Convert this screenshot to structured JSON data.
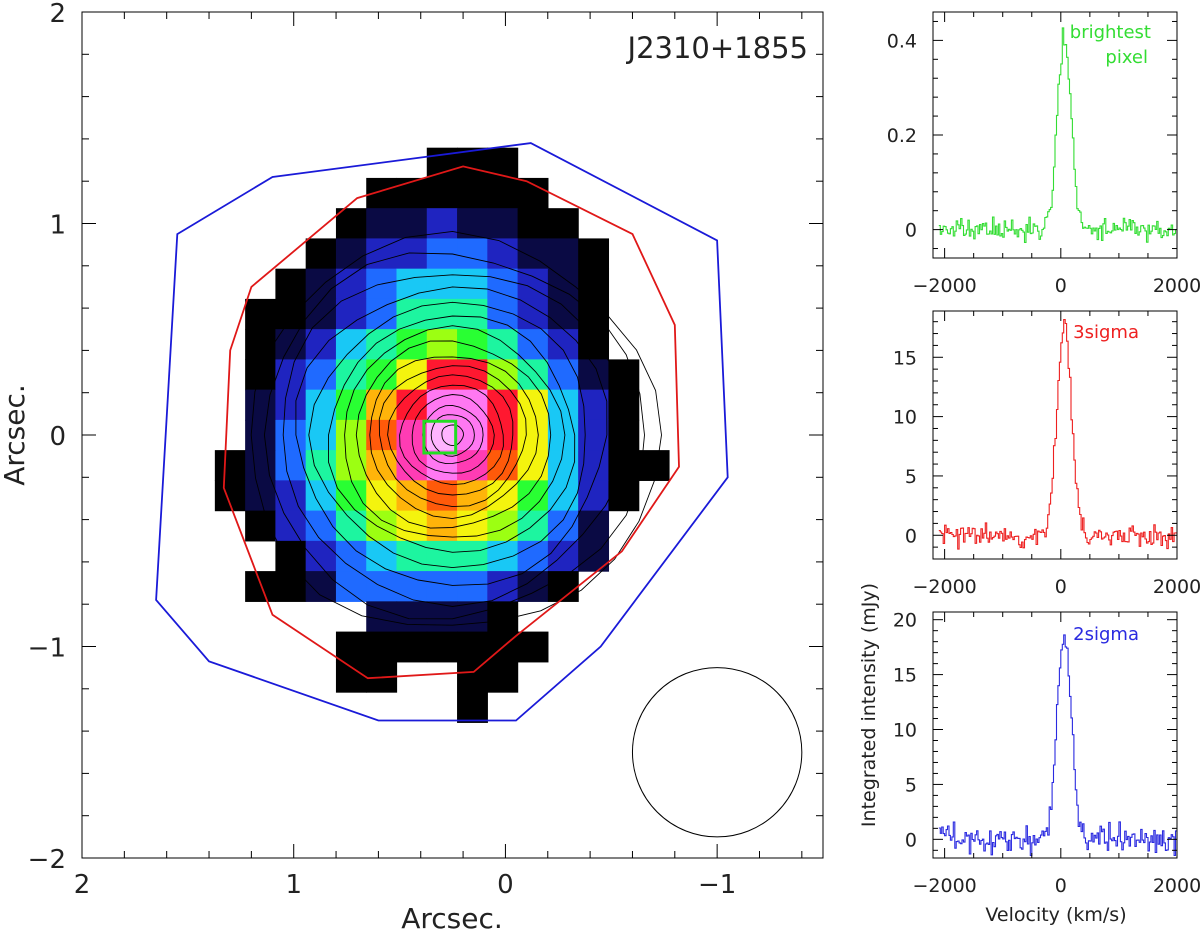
{
  "chart_data": [
    {
      "type": "heatmap",
      "name": "integrated-intensity-map",
      "title": "J2310+1855",
      "xlabel": "Arcsec.",
      "ylabel": "Arcsec.",
      "xlim": [
        2,
        -1.5
      ],
      "ylim": [
        -2,
        2
      ],
      "xticks": [
        2,
        1,
        0,
        -1
      ],
      "xtick_labels": [
        "2",
        "1",
        "0",
        "−1"
      ],
      "yticks": [
        -2,
        -1,
        0,
        1,
        2
      ],
      "ytick_labels": [
        "−2",
        "−1",
        "0",
        "1",
        "2"
      ],
      "pixel_size_arcsec": 0.143,
      "grid_origin_arcsec": [
        0.3,
        0.0
      ],
      "colormap": [
        "#000000",
        "#0a0a44",
        "#1f24c0",
        "#1f6aff",
        "#19c8f5",
        "#1df5a0",
        "#29ff33",
        "#9cff12",
        "#f4f40e",
        "#ffb40a",
        "#ff5a0a",
        "#ff1830",
        "#ff3cb4",
        "#ff78f2",
        "#ffb4ff"
      ],
      "levels_legend": "0 = black (faint) ... 14 = pale pink (peak)",
      "pixel_levels": [
        {
          "y": 9,
          "x": [
            0,
            1,
            2
          ],
          "level": [
            0,
            0,
            0
          ]
        },
        {
          "y": 8,
          "x": [
            -2,
            -1,
            0,
            1,
            2,
            3
          ],
          "level": [
            0,
            0,
            0,
            0,
            0,
            0
          ]
        },
        {
          "y": 7,
          "x": [
            -3,
            -2,
            -1,
            0,
            1,
            2,
            3,
            4
          ],
          "level": [
            0,
            1,
            1,
            2,
            1,
            1,
            0,
            0
          ]
        },
        {
          "y": 6,
          "x": [
            -4,
            -3,
            -2,
            -1,
            0,
            1,
            2,
            3,
            4,
            5
          ],
          "level": [
            0,
            1,
            2,
            2,
            3,
            3,
            2,
            1,
            1,
            0
          ]
        },
        {
          "y": 5,
          "x": [
            -5,
            -4,
            -3,
            -2,
            -1,
            0,
            1,
            2,
            3,
            4,
            5
          ],
          "level": [
            0,
            1,
            2,
            3,
            4,
            4,
            4,
            3,
            2,
            1,
            0
          ]
        },
        {
          "y": 4,
          "x": [
            -6,
            -5,
            -4,
            -3,
            -2,
            -1,
            0,
            1,
            2,
            3,
            4,
            5
          ],
          "level": [
            0,
            0,
            1,
            2,
            3,
            5,
            5,
            5,
            3,
            2,
            1,
            0
          ]
        },
        {
          "y": 3,
          "x": [
            -6,
            -5,
            -4,
            -3,
            -2,
            -1,
            0,
            1,
            2,
            3,
            4,
            5
          ],
          "level": [
            0,
            1,
            2,
            4,
            5,
            6,
            7,
            6,
            5,
            3,
            2,
            0
          ]
        },
        {
          "y": 2,
          "x": [
            -6,
            -5,
            -4,
            -3,
            -2,
            -1,
            0,
            1,
            2,
            3,
            4,
            5,
            6
          ],
          "level": [
            0,
            2,
            3,
            5,
            6,
            8,
            11,
            11,
            7,
            5,
            3,
            1,
            0
          ]
        },
        {
          "y": 1,
          "x": [
            -6,
            -5,
            -4,
            -3,
            -2,
            -1,
            0,
            1,
            2,
            3,
            4,
            5,
            6
          ],
          "level": [
            1,
            2,
            4,
            6,
            9,
            11,
            13,
            13,
            11,
            8,
            4,
            2,
            0
          ]
        },
        {
          "y": 0,
          "x": [
            -6,
            -5,
            -4,
            -3,
            -2,
            -1,
            0,
            1,
            2,
            3,
            4,
            5,
            6
          ],
          "level": [
            1,
            3,
            4,
            7,
            10,
            12,
            14,
            13,
            11,
            8,
            4,
            2,
            0
          ]
        },
        {
          "y": -1,
          "x": [
            -7,
            -6,
            -5,
            -4,
            -3,
            -2,
            -1,
            0,
            1,
            2,
            3,
            4,
            5,
            6,
            7
          ],
          "level": [
            0,
            1,
            3,
            5,
            7,
            9,
            12,
            13,
            12,
            10,
            8,
            4,
            2,
            0,
            0
          ]
        },
        {
          "y": -2,
          "x": [
            -7,
            -6,
            -5,
            -4,
            -3,
            -2,
            -1,
            0,
            1,
            2,
            3,
            4,
            5,
            6
          ],
          "level": [
            0,
            1,
            2,
            4,
            6,
            8,
            9,
            10,
            9,
            8,
            6,
            4,
            2,
            0
          ]
        },
        {
          "y": -3,
          "x": [
            -6,
            -5,
            -4,
            -3,
            -2,
            -1,
            0,
            1,
            2,
            3,
            4,
            5
          ],
          "level": [
            0,
            2,
            3,
            5,
            7,
            8,
            9,
            8,
            7,
            5,
            3,
            1
          ]
        },
        {
          "y": -4,
          "x": [
            -5,
            -4,
            -3,
            -2,
            -1,
            0,
            1,
            2,
            3,
            4,
            5
          ],
          "level": [
            0,
            2,
            3,
            4,
            5,
            5,
            5,
            4,
            3,
            2,
            1
          ]
        },
        {
          "y": -5,
          "x": [
            -6,
            -5,
            -4,
            -3,
            -2,
            -1,
            0,
            1,
            2,
            3,
            4
          ],
          "level": [
            0,
            0,
            1,
            3,
            3,
            3,
            3,
            3,
            2,
            1,
            0
          ]
        },
        {
          "y": -6,
          "x": [
            -2,
            -1,
            0,
            1,
            2
          ],
          "level": [
            1,
            1,
            1,
            1,
            0
          ]
        },
        {
          "y": -7,
          "x": [
            -3,
            -2,
            -1,
            0,
            1,
            2,
            3
          ],
          "level": [
            0,
            0,
            0,
            0,
            0,
            0,
            0
          ]
        },
        {
          "y": -8,
          "x": [
            -3,
            -2,
            1,
            2
          ],
          "level": [
            0,
            0,
            0,
            0
          ]
        },
        {
          "y": -9,
          "x": [
            1
          ],
          "level": [
            0
          ]
        }
      ],
      "contours": {
        "center": [
          0.25,
          0.0
        ],
        "radii": [
          0.05,
          0.1,
          0.14,
          0.19,
          0.24,
          0.29,
          0.34,
          0.39,
          0.45,
          0.51,
          0.57,
          0.64,
          0.72,
          0.8,
          0.88,
          0.95
        ],
        "color": "#000000"
      },
      "brightest_pixel_box": {
        "center": [
          0.31,
          -0.01
        ],
        "size": 0.15,
        "color": "#22dd22"
      },
      "region_3sigma": {
        "color": "#e01818",
        "points": [
          [
            1.3,
            0.4
          ],
          [
            1.2,
            0.7
          ],
          [
            0.7,
            1.12
          ],
          [
            0.2,
            1.27
          ],
          [
            -0.1,
            1.2
          ],
          [
            -0.6,
            0.95
          ],
          [
            -0.8,
            0.52
          ],
          [
            -0.82,
            -0.15
          ],
          [
            -0.55,
            -0.55
          ],
          [
            -0.05,
            -0.95
          ],
          [
            0.15,
            -1.12
          ],
          [
            0.65,
            -1.15
          ],
          [
            1.1,
            -0.85
          ],
          [
            1.33,
            -0.25
          ]
        ]
      },
      "region_2sigma": {
        "color": "#1a1ad8",
        "points": [
          [
            1.55,
            0.95
          ],
          [
            1.1,
            1.22
          ],
          [
            -0.12,
            1.38
          ],
          [
            -1.0,
            0.92
          ],
          [
            -1.05,
            -0.2
          ],
          [
            -0.45,
            -1.0
          ],
          [
            -0.05,
            -1.35
          ],
          [
            0.6,
            -1.35
          ],
          [
            1.4,
            -1.07
          ],
          [
            1.65,
            -0.78
          ]
        ]
      },
      "beam": {
        "center": [
          -1.0,
          -1.5
        ],
        "radius_arcsec": 0.4,
        "color": "#000000"
      }
    },
    {
      "type": "line",
      "name": "spectrum-brightest-pixel",
      "label": "brightest pixel",
      "label_lines": [
        "brightest",
        "pixel"
      ],
      "color": "#33dd33",
      "xlim": [
        -2200,
        2000
      ],
      "ylim": [
        -0.06,
        0.46
      ],
      "xticks": [
        -2000,
        0,
        2000
      ],
      "xtick_labels": [
        "−2000",
        "0",
        "2000"
      ],
      "yticks": [
        0,
        0.2,
        0.4
      ],
      "ytick_labels": [
        "0",
        "0.2",
        "0.4"
      ],
      "line_center_kms": 50,
      "line_width_kms": 285,
      "line_peak": 0.4,
      "noise_rms": 0.015,
      "noise_seed": 11
    },
    {
      "type": "line",
      "name": "spectrum-3sigma",
      "label": "3sigma",
      "label_lines": [
        "3sigma"
      ],
      "color": "#ee2020",
      "xlim": [
        -2200,
        2000
      ],
      "ylim": [
        -2,
        18.9
      ],
      "xticks": [
        -2000,
        0,
        2000
      ],
      "xtick_labels": [
        "−2000",
        "0",
        "2000"
      ],
      "yticks": [
        0,
        5,
        10,
        15
      ],
      "ytick_labels": [
        "0",
        "5",
        "10",
        "15"
      ],
      "line_center_kms": 50,
      "line_width_kms": 290,
      "line_peak": 17.6,
      "noise_rms": 0.6,
      "noise_seed": 23
    },
    {
      "type": "line",
      "name": "spectrum-2sigma",
      "label": "2sigma",
      "label_lines": [
        "2sigma"
      ],
      "color": "#2a2ae0",
      "xlim": [
        -2200,
        2000
      ],
      "ylim": [
        -1.7,
        20.7
      ],
      "xticks": [
        -2000,
        0,
        2000
      ],
      "xtick_labels": [
        "−2000",
        "0",
        "2000"
      ],
      "yticks": [
        0,
        5,
        10,
        15,
        20
      ],
      "ytick_labels": [
        "0",
        "5",
        "10",
        "15",
        "20"
      ],
      "line_center_kms": 50,
      "line_width_kms": 290,
      "line_peak": 18.7,
      "noise_rms": 0.8,
      "noise_seed": 37,
      "xlabel": "Velocity (km/s)",
      "ylabel": "Integrated intensity (mJy)"
    }
  ]
}
